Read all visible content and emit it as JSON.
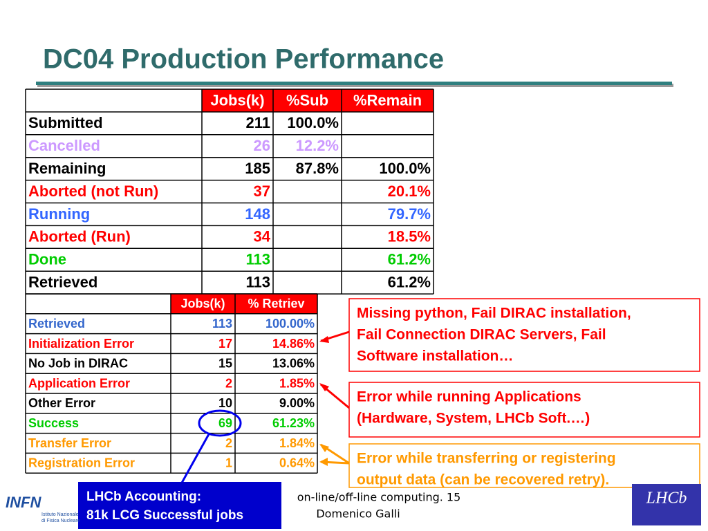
{
  "title": "DC04 Production Performance",
  "table1": {
    "header": [
      "Jobs(k)",
      "%Sub",
      "%Remain"
    ],
    "rows": [
      {
        "cells": [
          "Submitted",
          "211",
          "100.0%",
          null
        ],
        "color": "#000000"
      },
      {
        "cells": [
          "Cancelled",
          "26",
          "12.2%",
          null
        ],
        "color": "#cc99ff"
      },
      {
        "cells": [
          "Remaining",
          "185",
          "87.8%",
          "100.0%"
        ],
        "color": "#000000"
      },
      {
        "cells": [
          "Aborted (not Run)",
          "37",
          null,
          "20.1%"
        ],
        "color": "#ff0000"
      },
      {
        "cells": [
          "Running",
          "148",
          null,
          "79.7%"
        ],
        "color": "#3366ff"
      },
      {
        "cells": [
          "Aborted (Run)",
          "34",
          null,
          "18.5%"
        ],
        "color": "#ff0000"
      },
      {
        "cells": [
          "Done",
          "113",
          null,
          "61.2%"
        ],
        "color": "#00cc00"
      },
      {
        "cells": [
          "Retrieved",
          "113",
          null,
          "61.2%"
        ],
        "color": "#000000"
      }
    ]
  },
  "table2": {
    "header": [
      "Jobs(k)",
      "% Retriev"
    ],
    "rows": [
      {
        "cells": [
          "Retrieved",
          "113",
          "100.00%"
        ],
        "color": "#3366cc"
      },
      {
        "cells": [
          "Initialization Error",
          "17",
          "14.86%"
        ],
        "color": "#ff0000"
      },
      {
        "cells": [
          "No Job in DIRAC",
          "15",
          "13.06%"
        ],
        "color": "#000000"
      },
      {
        "cells": [
          "Application Error",
          "2",
          "1.85%"
        ],
        "color": "#ff0000"
      },
      {
        "cells": [
          "Other Error",
          "10",
          "9.00%"
        ],
        "color": "#000000"
      },
      {
        "cells": [
          "Success",
          "69",
          "61.23%"
        ],
        "color": "#00cc00"
      },
      {
        "cells": [
          "Transfer Error",
          "2",
          "1.84%"
        ],
        "color": "#ff9900"
      },
      {
        "cells": [
          "Registration Error",
          "1",
          "0.64%"
        ],
        "color": "#ff9900"
      }
    ]
  },
  "callouts": [
    {
      "lines": [
        "Missing python, Fail DIRAC installation,",
        "Fail Connection DIRAC Servers, Fail",
        "Software installation…"
      ],
      "color": "#ff0000"
    },
    {
      "lines": [
        "Error while running Applications",
        "(Hardware, System, LHCb Soft.…)"
      ],
      "color": "#ff0000"
    },
    {
      "lines": [
        "Error while transferring or registering",
        "output data (can be recovered retry)."
      ],
      "color": "#ff9900"
    }
  ],
  "accounting": [
    "LHCb Accounting:",
    "81k LCG Successful jobs"
  ],
  "footer": [
    "on-line/off-line computing. 15",
    "Domenico Galli"
  ],
  "logos": {
    "infn": "INFN",
    "infn_sub": [
      "Istituto Nazionale",
      "di Fisica Nucleare"
    ],
    "lhcb": "LHCb"
  }
}
